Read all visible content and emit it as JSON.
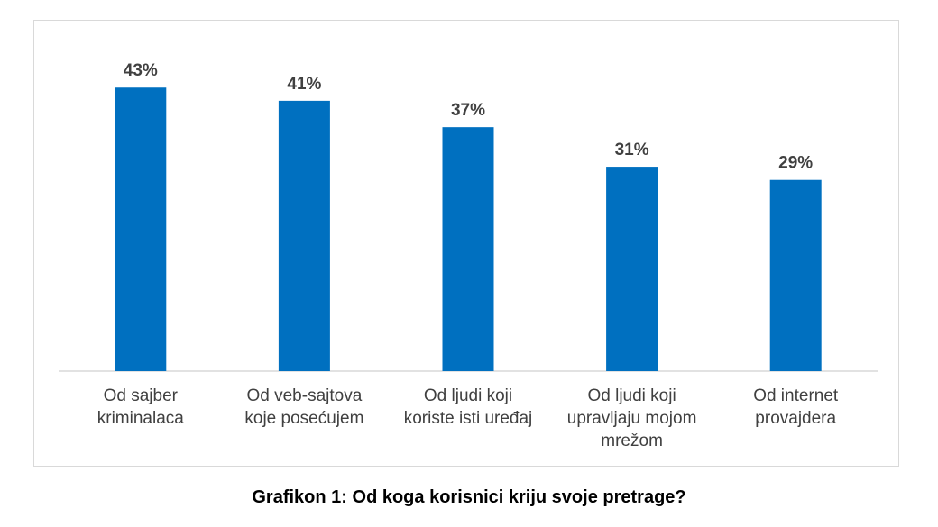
{
  "caption": "Grafikon 1: Od koga korisnici kriju svoje pretrage?",
  "colors": {
    "bar": "#0070C0",
    "axis": "#d9d9d9",
    "label": "#404040",
    "data_label": "#404040"
  },
  "chart_data": {
    "type": "bar",
    "title": "",
    "xlabel": "",
    "ylabel": "",
    "ylim": [
      0,
      50
    ],
    "grid": false,
    "categories": [
      [
        "Od sajber",
        "kriminalaca"
      ],
      [
        "Od veb-sajtova",
        "koje posećujem"
      ],
      [
        "Od ljudi koji",
        "koriste isti uređaj"
      ],
      [
        "Od ljudi koji",
        "upravljaju mojom",
        "mrežom"
      ],
      [
        "Od internet",
        "provajdera"
      ]
    ],
    "values": [
      43,
      41,
      37,
      31,
      29
    ],
    "data_labels": [
      "43%",
      "41%",
      "37%",
      "31%",
      "29%"
    ]
  }
}
